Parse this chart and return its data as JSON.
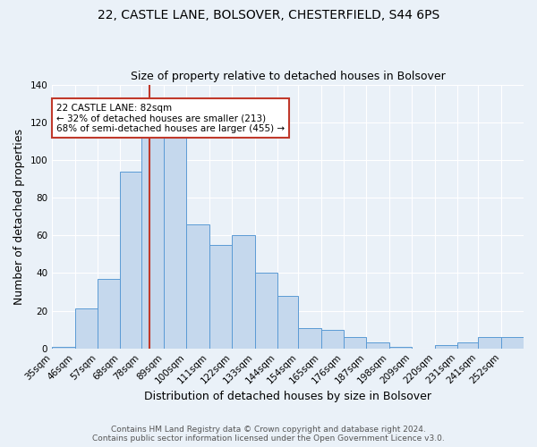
{
  "title1": "22, CASTLE LANE, BOLSOVER, CHESTERFIELD, S44 6PS",
  "title2": "Size of property relative to detached houses in Bolsover",
  "xlabel": "Distribution of detached houses by size in Bolsover",
  "ylabel": "Number of detached properties",
  "footnote1": "Contains HM Land Registry data © Crown copyright and database right 2024.",
  "footnote2": "Contains public sector information licensed under the Open Government Licence v3.0.",
  "bar_color": "#c5d8ed",
  "bar_edge_color": "#5b9bd5",
  "background_color": "#eaf1f8",
  "vline_x": 82,
  "vline_color": "#c0392b",
  "categories": [
    "35sqm",
    "46sqm",
    "57sqm",
    "68sqm",
    "78sqm",
    "89sqm",
    "100sqm",
    "111sqm",
    "122sqm",
    "133sqm",
    "144sqm",
    "154sqm",
    "165sqm",
    "176sqm",
    "187sqm",
    "198sqm",
    "209sqm",
    "220sqm",
    "231sqm",
    "241sqm",
    "252sqm"
  ],
  "bin_edges": [
    35,
    46,
    57,
    68,
    78,
    89,
    100,
    111,
    122,
    133,
    144,
    154,
    165,
    176,
    187,
    198,
    209,
    220,
    231,
    241,
    252,
    263
  ],
  "values": [
    1,
    21,
    37,
    94,
    118,
    113,
    66,
    55,
    60,
    40,
    28,
    11,
    10,
    6,
    3,
    1,
    0,
    2,
    3,
    6,
    6
  ],
  "ylim": [
    0,
    140
  ],
  "yticks": [
    0,
    20,
    40,
    60,
    80,
    100,
    120,
    140
  ],
  "annotation_title": "22 CASTLE LANE: 82sqm",
  "annotation_line1": "← 32% of detached houses are smaller (213)",
  "annotation_line2": "68% of semi-detached houses are larger (455) →",
  "annotation_box_color": "#ffffff",
  "annotation_box_edge": "#c0392b"
}
